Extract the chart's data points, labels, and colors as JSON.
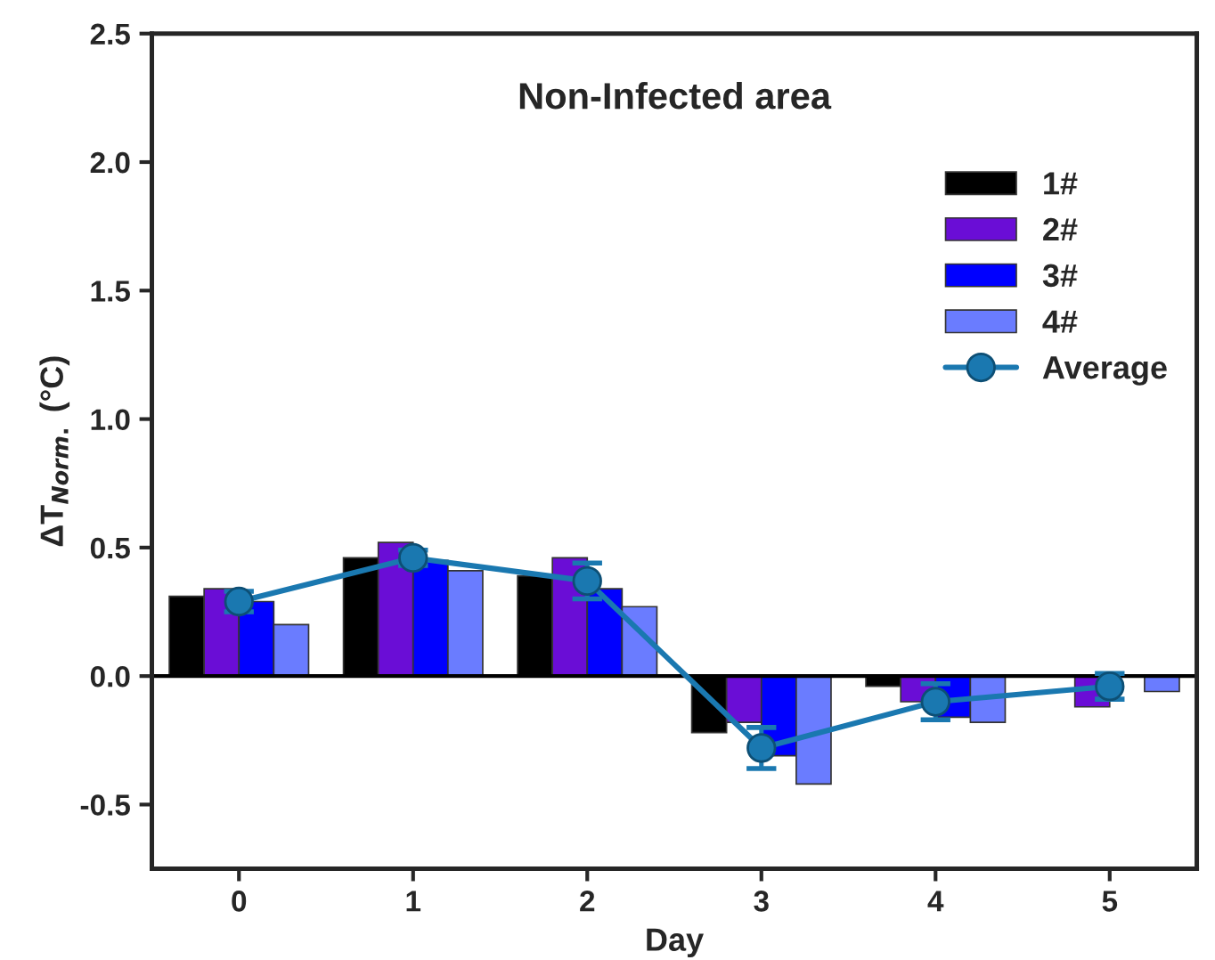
{
  "chart_data": {
    "type": "bar",
    "title": "Non-Infected area",
    "xlabel": "Day",
    "ylabel": "ΔT$_{Norm.}$ (°C)",
    "categories": [
      "0",
      "1",
      "2",
      "3",
      "4",
      "5"
    ],
    "series": [
      {
        "name": "1#",
        "color": "#000000",
        "values": [
          0.31,
          0.46,
          0.39,
          -0.22,
          -0.04,
          null
        ]
      },
      {
        "name": "2#",
        "color": "#6a0dd6",
        "values": [
          0.34,
          0.52,
          0.46,
          -0.18,
          -0.1,
          -0.12
        ]
      },
      {
        "name": "3#",
        "color": "#0000ff",
        "values": [
          0.29,
          0.45,
          0.34,
          -0.31,
          -0.16,
          null
        ]
      },
      {
        "name": "4#",
        "color": "#6a7cff",
        "values": [
          0.2,
          0.41,
          0.27,
          -0.42,
          -0.18,
          -0.06
        ]
      },
      {
        "name": "Average",
        "type": "line",
        "color": "#1a78b0",
        "marker": "circle",
        "line_style": "solid",
        "values": [
          0.29,
          0.46,
          0.37,
          -0.28,
          -0.1,
          -0.04
        ],
        "errors": [
          0.04,
          0.03,
          0.07,
          0.08,
          0.07,
          0.05
        ]
      }
    ],
    "ylim": [
      -0.75,
      2.5
    ],
    "yticks": [
      {
        "value": -0.5,
        "label": "-0.5"
      },
      {
        "value": 0,
        "label": "0.0"
      },
      0.5,
      {
        "value": 1,
        "label": "1.0"
      },
      1.5,
      {
        "value": 2,
        "label": "2.0"
      },
      2.5
    ],
    "ref_lines": [
      {
        "axis": "y",
        "value": 0,
        "color": "#000000"
      }
    ],
    "legend": "top right"
  }
}
